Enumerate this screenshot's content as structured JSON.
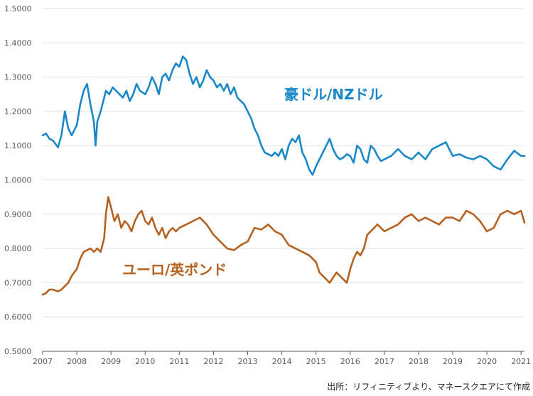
{
  "chart_data": {
    "type": "line",
    "ylim": [
      0.5,
      1.5
    ],
    "yticks": [
      "0.5000",
      "0.6000",
      "0.7000",
      "0.8000",
      "0.9000",
      "1.0000",
      "1.1000",
      "1.2000",
      "1.3000",
      "1.4000",
      "1.5000"
    ],
    "xlim": [
      2007.0,
      2021.1
    ],
    "xticks": [
      "2007",
      "2008",
      "2009",
      "2010",
      "2011",
      "2012",
      "2013",
      "2014",
      "2015",
      "2016",
      "2017",
      "2018",
      "2019",
      "2020",
      "2021"
    ],
    "grid": "horizontal",
    "series": [
      {
        "name": "豪ドル/NZドル",
        "color": "#1a87c9",
        "x": [
          2007.0,
          2007.1,
          2007.2,
          2007.3,
          2007.45,
          2007.55,
          2007.65,
          2007.75,
          2007.85,
          2008.0,
          2008.1,
          2008.2,
          2008.3,
          2008.4,
          2008.5,
          2008.55,
          2008.6,
          2008.7,
          2008.8,
          2008.85,
          2008.95,
          2009.05,
          2009.15,
          2009.25,
          2009.35,
          2009.45,
          2009.55,
          2009.65,
          2009.75,
          2009.85,
          2010.0,
          2010.1,
          2010.2,
          2010.3,
          2010.4,
          2010.5,
          2010.6,
          2010.7,
          2010.8,
          2010.9,
          2011.0,
          2011.1,
          2011.2,
          2011.3,
          2011.4,
          2011.5,
          2011.6,
          2011.7,
          2011.8,
          2011.9,
          2012.0,
          2012.1,
          2012.2,
          2012.3,
          2012.4,
          2012.5,
          2012.6,
          2012.7,
          2012.8,
          2012.9,
          2013.0,
          2013.1,
          2013.2,
          2013.3,
          2013.4,
          2013.5,
          2013.6,
          2013.7,
          2013.8,
          2013.9,
          2014.0,
          2014.1,
          2014.2,
          2014.3,
          2014.4,
          2014.5,
          2014.6,
          2014.7,
          2014.8,
          2014.9,
          2015.0,
          2015.1,
          2015.2,
          2015.3,
          2015.4,
          2015.5,
          2015.6,
          2015.7,
          2015.8,
          2015.9,
          2016.0,
          2016.1,
          2016.2,
          2016.3,
          2016.4,
          2016.5,
          2016.6,
          2016.7,
          2016.8,
          2016.9,
          2017.0,
          2017.2,
          2017.4,
          2017.6,
          2017.8,
          2018.0,
          2018.2,
          2018.4,
          2018.6,
          2018.8,
          2019.0,
          2019.2,
          2019.4,
          2019.6,
          2019.8,
          2020.0,
          2020.2,
          2020.4,
          2020.6,
          2020.8,
          2021.0,
          2021.1
        ],
        "values": [
          1.13,
          1.135,
          1.12,
          1.115,
          1.095,
          1.13,
          1.2,
          1.15,
          1.13,
          1.16,
          1.22,
          1.26,
          1.28,
          1.22,
          1.17,
          1.1,
          1.17,
          1.2,
          1.24,
          1.26,
          1.25,
          1.27,
          1.26,
          1.25,
          1.24,
          1.26,
          1.23,
          1.25,
          1.28,
          1.26,
          1.25,
          1.27,
          1.3,
          1.28,
          1.25,
          1.3,
          1.31,
          1.29,
          1.32,
          1.34,
          1.33,
          1.36,
          1.35,
          1.31,
          1.28,
          1.3,
          1.27,
          1.29,
          1.32,
          1.3,
          1.29,
          1.27,
          1.28,
          1.26,
          1.28,
          1.25,
          1.27,
          1.24,
          1.23,
          1.22,
          1.2,
          1.18,
          1.15,
          1.13,
          1.1,
          1.08,
          1.075,
          1.07,
          1.08,
          1.07,
          1.09,
          1.06,
          1.1,
          1.12,
          1.11,
          1.13,
          1.08,
          1.06,
          1.03,
          1.015,
          1.04,
          1.06,
          1.08,
          1.1,
          1.12,
          1.09,
          1.07,
          1.06,
          1.065,
          1.075,
          1.07,
          1.05,
          1.1,
          1.09,
          1.06,
          1.05,
          1.1,
          1.09,
          1.07,
          1.055,
          1.06,
          1.07,
          1.09,
          1.07,
          1.06,
          1.08,
          1.06,
          1.09,
          1.1,
          1.11,
          1.07,
          1.075,
          1.065,
          1.06,
          1.07,
          1.06,
          1.04,
          1.03,
          1.06,
          1.085,
          1.07,
          1.07
        ]
      },
      {
        "name": "ユーロ/英ポンド",
        "color": "#b5611f",
        "x": [
          2007.0,
          2007.1,
          2007.2,
          2007.3,
          2007.45,
          2007.55,
          2007.65,
          2007.75,
          2007.85,
          2008.0,
          2008.1,
          2008.2,
          2008.3,
          2008.4,
          2008.5,
          2008.6,
          2008.7,
          2008.8,
          2008.85,
          2008.92,
          2009.0,
          2009.1,
          2009.2,
          2009.3,
          2009.4,
          2009.5,
          2009.6,
          2009.7,
          2009.8,
          2009.9,
          2010.0,
          2010.1,
          2010.2,
          2010.3,
          2010.4,
          2010.5,
          2010.6,
          2010.7,
          2010.8,
          2010.9,
          2011.0,
          2011.2,
          2011.4,
          2011.6,
          2011.8,
          2012.0,
          2012.2,
          2012.4,
          2012.6,
          2012.8,
          2013.0,
          2013.2,
          2013.4,
          2013.6,
          2013.8,
          2014.0,
          2014.2,
          2014.4,
          2014.6,
          2014.8,
          2015.0,
          2015.1,
          2015.2,
          2015.3,
          2015.4,
          2015.5,
          2015.6,
          2015.7,
          2015.8,
          2015.9,
          2016.0,
          2016.1,
          2016.2,
          2016.3,
          2016.4,
          2016.5,
          2016.6,
          2016.7,
          2016.8,
          2016.9,
          2017.0,
          2017.2,
          2017.4,
          2017.6,
          2017.8,
          2018.0,
          2018.2,
          2018.4,
          2018.6,
          2018.8,
          2019.0,
          2019.2,
          2019.4,
          2019.6,
          2019.8,
          2020.0,
          2020.2,
          2020.4,
          2020.6,
          2020.8,
          2021.0,
          2021.1
        ],
        "values": [
          0.665,
          0.67,
          0.68,
          0.68,
          0.675,
          0.68,
          0.69,
          0.7,
          0.72,
          0.74,
          0.77,
          0.79,
          0.795,
          0.8,
          0.79,
          0.8,
          0.79,
          0.83,
          0.9,
          0.95,
          0.92,
          0.88,
          0.9,
          0.86,
          0.88,
          0.87,
          0.85,
          0.88,
          0.9,
          0.91,
          0.88,
          0.87,
          0.89,
          0.86,
          0.84,
          0.86,
          0.83,
          0.85,
          0.86,
          0.85,
          0.86,
          0.87,
          0.88,
          0.89,
          0.87,
          0.84,
          0.82,
          0.8,
          0.795,
          0.81,
          0.82,
          0.86,
          0.855,
          0.87,
          0.85,
          0.84,
          0.81,
          0.8,
          0.79,
          0.78,
          0.76,
          0.73,
          0.72,
          0.71,
          0.7,
          0.715,
          0.73,
          0.72,
          0.71,
          0.7,
          0.74,
          0.77,
          0.79,
          0.78,
          0.8,
          0.84,
          0.85,
          0.86,
          0.87,
          0.86,
          0.85,
          0.86,
          0.87,
          0.89,
          0.9,
          0.88,
          0.89,
          0.88,
          0.87,
          0.89,
          0.89,
          0.88,
          0.91,
          0.9,
          0.88,
          0.85,
          0.86,
          0.9,
          0.91,
          0.9,
          0.91,
          0.875
        ]
      }
    ],
    "labels": {
      "aud_nzd": "豪ドル/NZドル",
      "eur_gbp": "ユーロ/英ポンド"
    }
  },
  "source": "出所：リフィニティブより、マネースクエアにて作成"
}
